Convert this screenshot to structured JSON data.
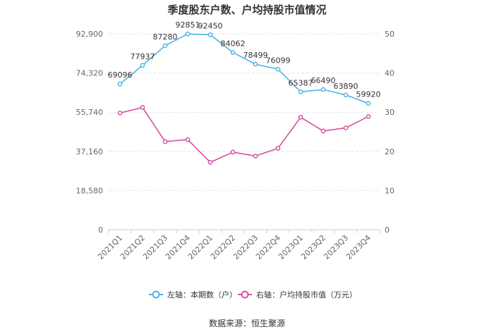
{
  "chart_data": {
    "type": "line",
    "title": "季度股东户数、户均持股市值情况",
    "categories": [
      "2021Q1",
      "2021Q2",
      "2021Q3",
      "2021Q4",
      "2022Q1",
      "2022Q2",
      "2022Q3",
      "2022Q4",
      "2023Q1",
      "2023Q2",
      "2023Q3",
      "2023Q4"
    ],
    "left_axis": {
      "ticks": [
        "0",
        "18,580",
        "37,160",
        "55,740",
        "74,320",
        "92,900"
      ],
      "ylim": [
        0,
        92900
      ]
    },
    "right_axis": {
      "ticks": [
        "0",
        "10",
        "20",
        "30",
        "40",
        "50"
      ],
      "ylim": [
        0,
        50
      ]
    },
    "series": [
      {
        "name": "左轴：本期数（户）",
        "axis": "left",
        "color": "#4db6e6",
        "values": [
          69096,
          77937,
          87280,
          92851,
          92450,
          84062,
          78499,
          76099,
          65387,
          66490,
          63890,
          59920
        ],
        "labels": [
          "69096",
          "77937",
          "87280",
          "92851",
          "92450",
          "84062",
          "78499",
          "76099",
          "65387",
          "66490",
          "63890",
          "59920"
        ]
      },
      {
        "name": "右轴：户均持股市值（万元）",
        "axis": "right",
        "color": "#d4519f",
        "values": [
          29.8,
          31.2,
          22.5,
          23.0,
          17.2,
          19.8,
          18.8,
          20.8,
          28.7,
          25.2,
          26.0,
          28.9
        ]
      }
    ],
    "source": "数据来源：恒生聚源"
  }
}
